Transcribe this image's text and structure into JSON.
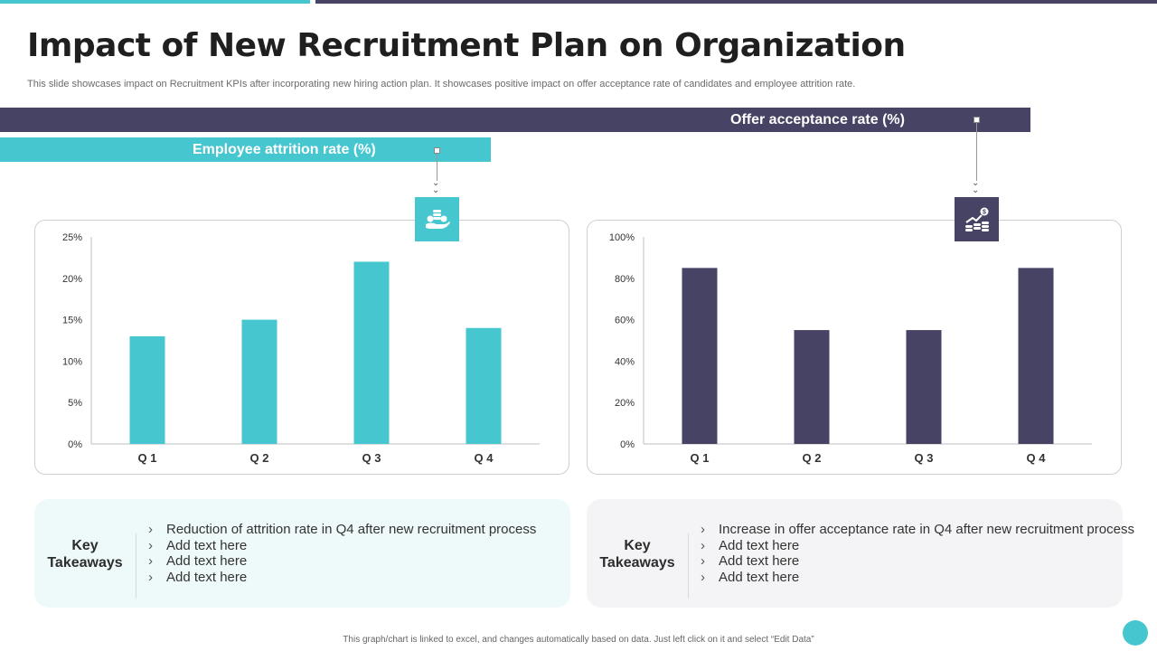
{
  "slide": {
    "title": "Impact of New Recruitment Plan on Organization",
    "subtitle": "This slide showcases impact on Recruitment KPIs after incorporating new hiring action plan. It showcases positive impact on offer acceptance rate of candidates and employee attrition rate.",
    "footnote": "This graph/chart is linked to excel, and changes automatically based on data. Just left click on it and select “Edit Data”"
  },
  "bands": {
    "offer_label": "Offer acceptance rate (%)",
    "attrition_label": "Employee attrition rate (%)"
  },
  "icons": {
    "attrition": "hand-holding-coins-icon",
    "offer": "growth-coins-icon"
  },
  "colors": {
    "teal": "#46c6cf",
    "navy": "#464364"
  },
  "chart_data": [
    {
      "type": "bar",
      "title": "",
      "categories": [
        "Q 1",
        "Q 2",
        "Q 3",
        "Q 4"
      ],
      "values": [
        13,
        15,
        22,
        14
      ],
      "ylim": [
        0,
        25
      ],
      "yticks": [
        0,
        5,
        10,
        15,
        20,
        25
      ],
      "ytick_labels": [
        "0%",
        "5%",
        "10%",
        "15%",
        "20%",
        "25%"
      ],
      "color": "#46c6cf",
      "grid": false
    },
    {
      "type": "bar",
      "title": "",
      "categories": [
        "Q 1",
        "Q 2",
        "Q 3",
        "Q 4"
      ],
      "values": [
        85,
        55,
        55,
        85
      ],
      "ylim": [
        0,
        100
      ],
      "yticks": [
        0,
        20,
        40,
        60,
        80,
        100
      ],
      "ytick_labels": [
        "0%",
        "20%",
        "40%",
        "60%",
        "80%",
        "100%"
      ],
      "color": "#464364",
      "grid": false
    }
  ],
  "takeaways": {
    "left": {
      "label_line1": "Key",
      "label_line2": "Takeaways",
      "chevron": "›",
      "items": [
        "Reduction of attrition rate in Q4 after new recruitment process",
        "Add text here",
        "Add text here",
        "Add text here"
      ]
    },
    "right": {
      "label_line1": "Key",
      "label_line2": "Takeaways",
      "chevron": "›",
      "items": [
        "Increase in offer acceptance rate in Q4 after new recruitment process",
        "Add text here",
        "Add text here",
        "Add text here"
      ]
    }
  }
}
